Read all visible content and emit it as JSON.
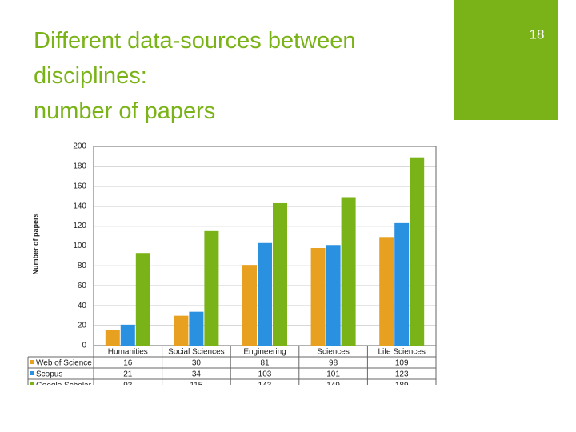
{
  "slide": {
    "title_lines": [
      "Different data-sources between",
      "disciplines:",
      "number of papers"
    ],
    "page_number": "18"
  },
  "chart_data": {
    "type": "bar",
    "y_axis_label": "Number of papers",
    "categories": [
      "Humanities",
      "Social Sciences",
      "Engineering",
      "Sciences",
      "Life Sciences"
    ],
    "series": [
      {
        "name": "Web of Science",
        "color": "#e8a020",
        "values": [
          16,
          30,
          81,
          98,
          109
        ]
      },
      {
        "name": "Scopus",
        "color": "#2a90e0",
        "values": [
          21,
          34,
          103,
          101,
          123
        ]
      },
      {
        "name": "Google Scholar",
        "color": "#7ab317",
        "values": [
          93,
          115,
          143,
          149,
          189
        ]
      }
    ],
    "ylim": [
      0,
      200
    ],
    "yticks": [
      0,
      20,
      40,
      60,
      80,
      100,
      120,
      140,
      160,
      180,
      200
    ],
    "grid": true
  }
}
